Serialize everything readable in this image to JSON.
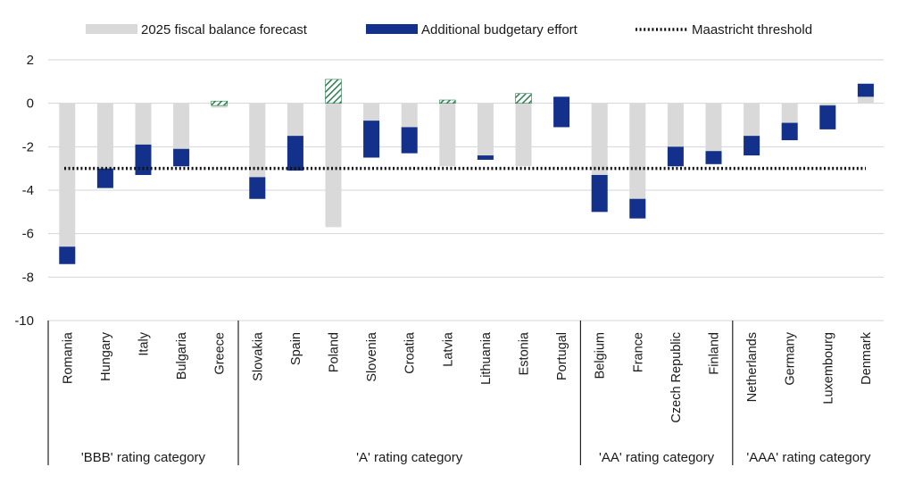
{
  "chart_data": {
    "type": "bar",
    "legend": {
      "placement": "top",
      "items": [
        {
          "label": "2025 fiscal balance forecast",
          "kind": "bar",
          "color": "#d9d9d9"
        },
        {
          "label": "Additional budgetary effort",
          "kind": "bar",
          "color": "#13318a"
        },
        {
          "label": "Maastricht threshold",
          "kind": "dotted-line",
          "color": "#111111"
        }
      ]
    },
    "categories": [
      "Romania",
      "Hungary",
      "Italy",
      "Bulgaria",
      "Greece",
      "Slovakia",
      "Spain",
      "Poland",
      "Slovenia",
      "Croatia",
      "Latvia",
      "Lithuania",
      "Estonia",
      "Portugal",
      "Belgium",
      "France",
      "Czech Republic",
      "Finland",
      "Netherlands",
      "Germany",
      "Luxembourg",
      "Denmark"
    ],
    "series": [
      {
        "name": "2025 fiscal balance forecast",
        "color": "#d9d9d9",
        "values": [
          -7.4,
          -3.9,
          -3.3,
          -2.9,
          -0.2,
          -4.4,
          -3.1,
          -5.7,
          -2.5,
          -2.3,
          -2.9,
          -2.6,
          -2.9,
          0.3,
          -5.0,
          -5.3,
          -2.9,
          -2.8,
          -2.4,
          -1.7,
          -1.2,
          0.9
        ]
      },
      {
        "name": "Additional budgetary effort",
        "color": "#13318a",
        "values": [
          0.8,
          0.9,
          1.4,
          0.8,
          0,
          1.0,
          1.6,
          0,
          1.7,
          1.2,
          0,
          0.2,
          0,
          1.4,
          1.7,
          0.9,
          0.9,
          0.6,
          0.9,
          0.8,
          1.1,
          0.6
        ]
      }
    ],
    "hatched_segments": {
      "color": "#2e7d4f",
      "items": [
        {
          "category": "Greece",
          "from": -0.1,
          "to": 0.1
        },
        {
          "category": "Poland",
          "from": 0.0,
          "to": 1.1
        },
        {
          "category": "Latvia",
          "from": 0.0,
          "to": 0.15
        },
        {
          "category": "Estonia",
          "from": 0.0,
          "to": 0.45
        }
      ]
    },
    "threshold": {
      "name": "Maastricht threshold",
      "value": -3.0
    },
    "ylim": [
      -10,
      2
    ],
    "yticks": [
      2,
      0,
      -2,
      -4,
      -6,
      -8,
      -10
    ],
    "grid": true,
    "groups": [
      {
        "label": "'BBB' rating category",
        "start": 0,
        "end": 4
      },
      {
        "label": "'A' rating category",
        "start": 5,
        "end": 13
      },
      {
        "label": "'AA' rating category",
        "start": 14,
        "end": 17
      },
      {
        "label": "'AAA' rating category",
        "start": 18,
        "end": 21
      }
    ]
  }
}
